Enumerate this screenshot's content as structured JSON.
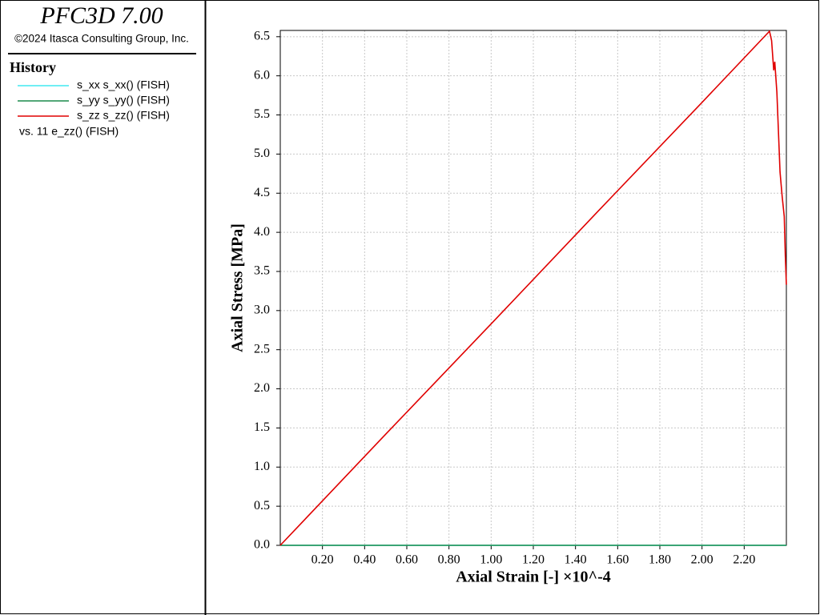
{
  "sidebar": {
    "title": "PFC3D 7.00",
    "copyright": "©2024 Itasca Consulting Group, Inc.",
    "heading": "History",
    "versus": "vs. 11 e_zz() (FISH)"
  },
  "chart_data": {
    "type": "line",
    "x_label": "Axial Strain [-] ×10^-4",
    "y_label": "Axial Stress [MPa]",
    "x": [
      0,
      0.5,
      1.0,
      1.5,
      2.0,
      2.32,
      2.33,
      2.34,
      2.345,
      2.355,
      2.37,
      2.38,
      2.39,
      2.395,
      2.4
    ],
    "series": [
      {
        "name": "s_xx s_xx() (FISH)",
        "color": "#40e8f0",
        "values": [
          0,
          0,
          0,
          0,
          0,
          0,
          0,
          0,
          0,
          0,
          0,
          0,
          0,
          0,
          0
        ]
      },
      {
        "name": "s_yy s_yy() (FISH)",
        "color": "#1a8a4a",
        "values": [
          0,
          0,
          0,
          0,
          0,
          0,
          0,
          0,
          0,
          0,
          0,
          0,
          0,
          0,
          0
        ]
      },
      {
        "name": "s_zz s_zz() (FISH)",
        "color": "#e00000",
        "values": [
          0,
          1.42,
          2.83,
          4.25,
          5.66,
          6.57,
          6.45,
          6.07,
          6.18,
          5.79,
          4.77,
          4.46,
          4.2,
          3.7,
          3.33
        ]
      }
    ],
    "xlim": [
      0,
      2.4
    ],
    "ylim": [
      0,
      6.58
    ],
    "xticks": [
      {
        "value": 0.2,
        "label": "0.20"
      },
      {
        "value": 0.4,
        "label": "0.40"
      },
      {
        "value": 0.6,
        "label": "0.60"
      },
      {
        "value": 0.8,
        "label": "0.80"
      },
      {
        "value": 1.0,
        "label": "1.00"
      },
      {
        "value": 1.2,
        "label": "1.20"
      },
      {
        "value": 1.4,
        "label": "1.40"
      },
      {
        "value": 1.6,
        "label": "1.60"
      },
      {
        "value": 1.8,
        "label": "1.80"
      },
      {
        "value": 2.0,
        "label": "2.00"
      },
      {
        "value": 2.2,
        "label": "2.20"
      }
    ],
    "yticks": [
      {
        "value": 0,
        "label": "0.0"
      },
      0.5,
      {
        "value": 1,
        "label": "1.0"
      },
      1.5,
      {
        "value": 2,
        "label": "2.0"
      },
      2.5,
      {
        "value": 3,
        "label": "3.0"
      },
      3.5,
      {
        "value": 4,
        "label": "4.0"
      },
      4.5,
      {
        "value": 5,
        "label": "5.0"
      },
      5.5,
      {
        "value": 6,
        "label": "6.0"
      },
      6.5
    ],
    "grid": true
  }
}
